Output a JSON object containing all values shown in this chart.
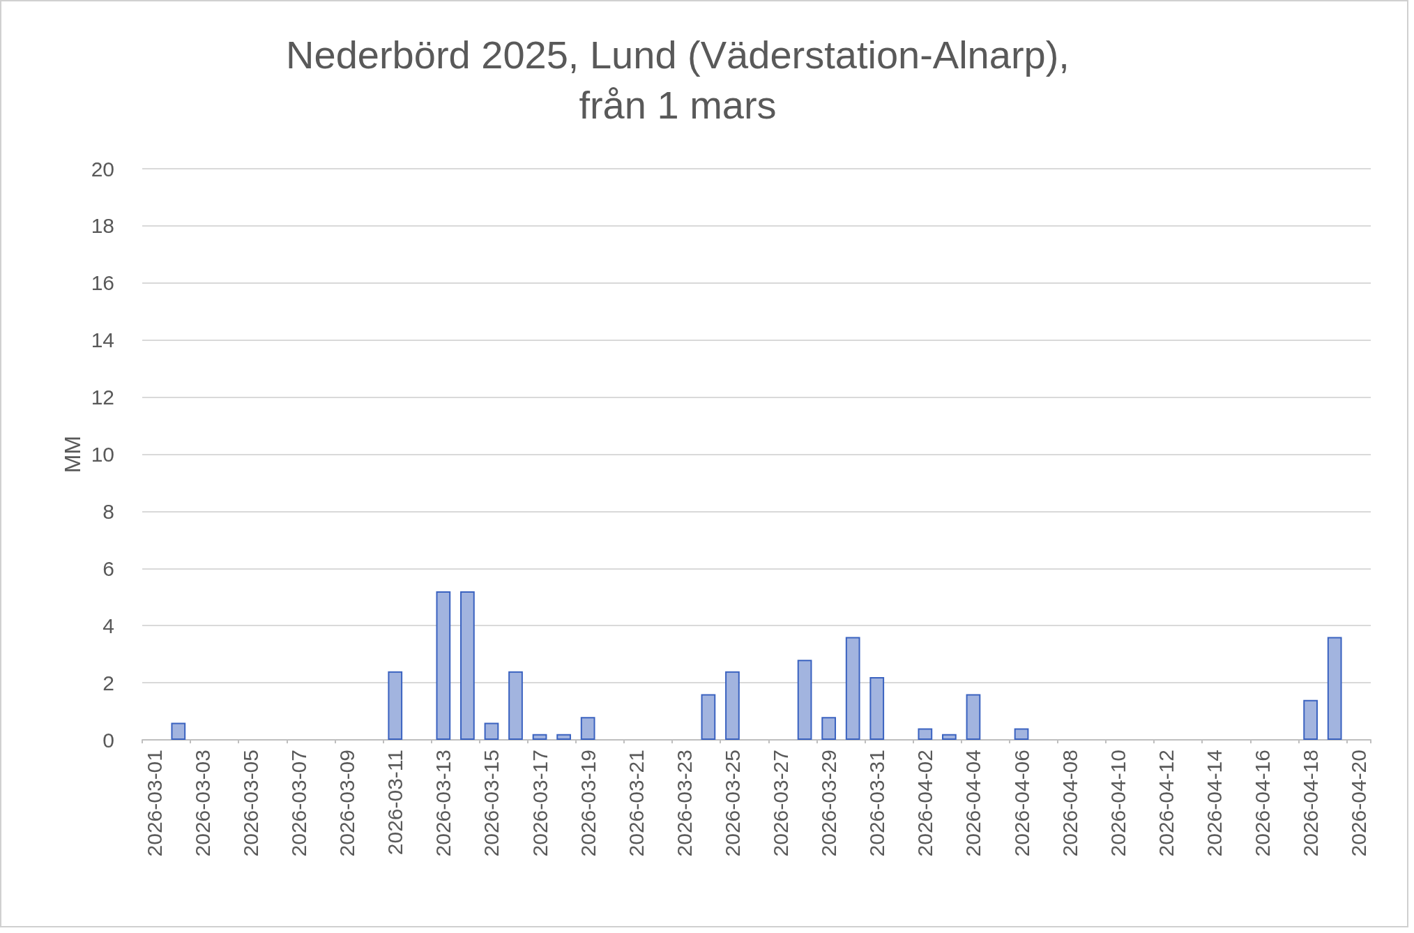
{
  "chart_data": {
    "type": "bar",
    "title": "Nederbörd 2025, Lund (Väderstation-Alnarp),\nfrån 1 mars",
    "ylabel": "MM",
    "categories": [
      "2026-03-01",
      null,
      "2026-03-03",
      null,
      "2026-03-05",
      null,
      "2026-03-07",
      null,
      "2026-03-09",
      null,
      "2026-03-11",
      null,
      "2026-03-13",
      null,
      "2026-03-15",
      null,
      "2026-03-17",
      null,
      "2026-03-19",
      null,
      "2026-03-21",
      null,
      "2026-03-23",
      null,
      "2026-03-25",
      null,
      "2026-03-27",
      null,
      "2026-03-29",
      null,
      "2026-03-31",
      null,
      "2026-04-02",
      null,
      "2026-04-04",
      null,
      "2026-04-06",
      null,
      "2026-04-08",
      null,
      "2026-04-10",
      null,
      "2026-04-12",
      null,
      "2026-04-14",
      null,
      "2026-04-16",
      null,
      "2026-04-18",
      null,
      "2026-04-20"
    ],
    "series": [
      {
        "color": "#a2b4df",
        "values": [
          0,
          0.6,
          0,
          0,
          0,
          0,
          0,
          0,
          0,
          0,
          2.4,
          0,
          5.2,
          5.2,
          0.6,
          2.4,
          0.2,
          0.2,
          0.8,
          0,
          0,
          0,
          0,
          1.6,
          2.4,
          0,
          0,
          2.8,
          0.8,
          3.6,
          2.2,
          0,
          0.4,
          0.2,
          1.6,
          0,
          0.4,
          0,
          0,
          0,
          0,
          0,
          0,
          0,
          0,
          0,
          0,
          0,
          1.4,
          3.6,
          0
        ]
      }
    ],
    "ylim": [
      0,
      20
    ],
    "yticks": [
      0,
      2,
      4,
      6,
      8,
      10,
      12,
      14,
      16,
      18,
      20
    ],
    "grid": "y"
  }
}
